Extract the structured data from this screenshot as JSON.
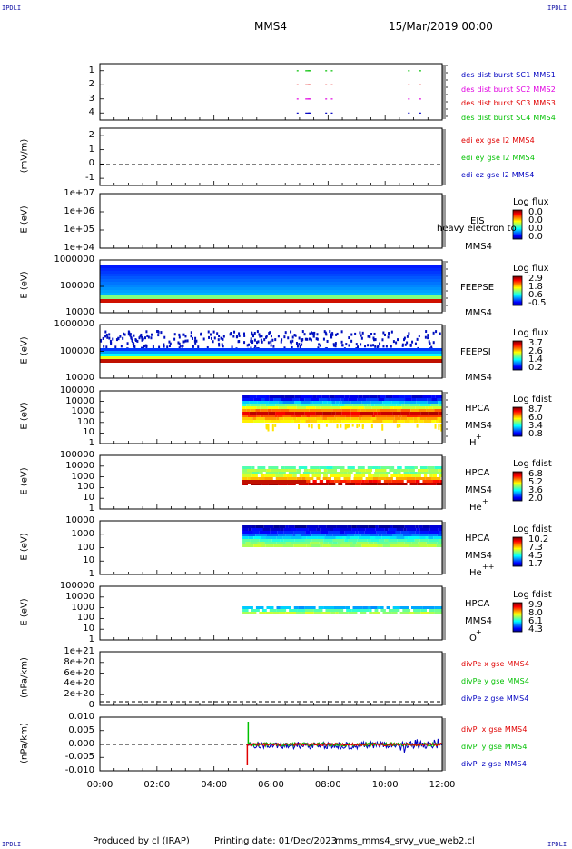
{
  "header": {
    "corner_tl": "IPDLI",
    "corner_tr": "IPDLI",
    "corner_bl": "IPDLI",
    "corner_br": "IPDLI",
    "spacecraft": "MMS4",
    "date": "15/Mar/2019 00:00"
  },
  "footer": {
    "produced_by": "Produced by cl (IRAP)",
    "printing_date": "Printing date: 01/Dec/2023",
    "script": "mms_mms4_srvy_vue_web2.cl"
  },
  "colors": {
    "red": "#e00000",
    "green": "#00c000",
    "blue": "#0000c0",
    "magenta": "#e000e0"
  },
  "chart_data": [
    {
      "type": "scatter",
      "id": "burst",
      "y_ticks": [
        "1",
        "2",
        "3",
        "4"
      ],
      "legend": [
        {
          "text": "des dist burst SC1 MMS1",
          "color": "#0000c0"
        },
        {
          "text": "des dist burst SC2 MMS2",
          "color": "#e000e0"
        },
        {
          "text": "des dist burst SC3 MMS3",
          "color": "#e00000"
        },
        {
          "text": "des dist burst SC4 MMS4",
          "color": "#00c000"
        }
      ]
    },
    {
      "type": "line",
      "id": "edi",
      "ylabel": "(mV/m)",
      "y_ticks": [
        "2",
        "1",
        "0",
        "-1"
      ],
      "legend": [
        {
          "text": "edi ex gse l2 MMS4",
          "color": "#e00000"
        },
        {
          "text": "edi ey gse l2 MMS4",
          "color": "#00c000"
        },
        {
          "text": "edi ez gse l2 MMS4",
          "color": "#0000c0"
        }
      ]
    },
    {
      "type": "heatmap",
      "id": "eis",
      "ylabel": "E (eV)",
      "y_ticks": [
        "1e+07",
        "1e+06",
        "1e+05",
        "1e+04"
      ],
      "side": [
        "EIS",
        "heavy electron to",
        "MMS4"
      ],
      "colorbar": {
        "title": "Log flux",
        "values": [
          "0.0",
          "0.0",
          "0.0",
          "0.0"
        ]
      }
    },
    {
      "type": "heatmap",
      "id": "feepse",
      "ylabel": "E (eV)",
      "y_ticks": [
        "1000000",
        "100000",
        "10000"
      ],
      "side": [
        "FEEPSE",
        "MMS4"
      ],
      "colorbar": {
        "title": "Log flux",
        "values": [
          "2.9",
          "1.8",
          "0.6",
          "-0.5"
        ]
      }
    },
    {
      "type": "heatmap",
      "id": "feepsi",
      "ylabel": "E (eV)",
      "y_ticks": [
        "1000000",
        "100000",
        "10000"
      ],
      "side": [
        "FEEPSI",
        "MMS4"
      ],
      "colorbar": {
        "title": "Log flux",
        "values": [
          "3.7",
          "2.6",
          "1.4",
          "0.2"
        ]
      }
    },
    {
      "type": "heatmap",
      "id": "hpca_h",
      "ylabel": "E (eV)",
      "y_ticks": [
        "100000",
        "10000",
        "1000",
        "100",
        "10",
        "1"
      ],
      "side": [
        "HPCA",
        "MMS4",
        "H",
        "+"
      ],
      "colorbar": {
        "title": "Log fdist",
        "values": [
          "8.7",
          "6.0",
          "3.4",
          "0.8"
        ]
      }
    },
    {
      "type": "heatmap",
      "id": "hpca_he",
      "ylabel": "E (eV)",
      "y_ticks": [
        "100000",
        "10000",
        "1000",
        "100",
        "10",
        "1"
      ],
      "side": [
        "HPCA",
        "MMS4",
        "He",
        "+"
      ],
      "colorbar": {
        "title": "Log fdist",
        "values": [
          "6.8",
          "5.2",
          "3.6",
          "2.0"
        ]
      }
    },
    {
      "type": "heatmap",
      "id": "hpca_hepp",
      "ylabel": "E (eV)",
      "y_ticks": [
        "10000",
        "1000",
        "100",
        "10",
        "1"
      ],
      "side": [
        "HPCA",
        "MMS4",
        "He",
        "++"
      ],
      "colorbar": {
        "title": "Log fdist",
        "values": [
          "10.2",
          "7.3",
          "4.5",
          "1.7"
        ]
      }
    },
    {
      "type": "heatmap",
      "id": "hpca_o",
      "ylabel": "E (eV)",
      "y_ticks": [
        "100000",
        "10000",
        "1000",
        "100",
        "10",
        "1"
      ],
      "side": [
        "HPCA",
        "MMS4",
        "O",
        "+"
      ],
      "colorbar": {
        "title": "Log fdist",
        "values": [
          "9.9",
          "8.0",
          "6.1",
          "4.3"
        ]
      }
    },
    {
      "type": "line",
      "id": "divpe",
      "ylabel": "(nPa/km)",
      "y_ticks": [
        "1e+21",
        "8e+20",
        "6e+20",
        "4e+20",
        "2e+20",
        "0"
      ],
      "legend": [
        {
          "text": "divPe x gse MMS4",
          "color": "#e00000"
        },
        {
          "text": "divPe y gse MMS4",
          "color": "#00c000"
        },
        {
          "text": "divPe z gse MMS4",
          "color": "#0000c0"
        }
      ]
    },
    {
      "type": "line",
      "id": "divpi",
      "ylabel": "(nPa/km)",
      "y_ticks": [
        "0.010",
        "0.005",
        "0.000",
        "-0.005",
        "-0.010"
      ],
      "legend": [
        {
          "text": "divPi x gse MMS4",
          "color": "#e00000"
        },
        {
          "text": "divPi y gse MMS4",
          "color": "#00c000"
        },
        {
          "text": "divPi z gse MMS4",
          "color": "#0000c0"
        }
      ]
    }
  ],
  "x_axis": {
    "ticks": [
      "00:00",
      "02:00",
      "04:00",
      "06:00",
      "08:00",
      "10:00",
      "12:00"
    ]
  }
}
